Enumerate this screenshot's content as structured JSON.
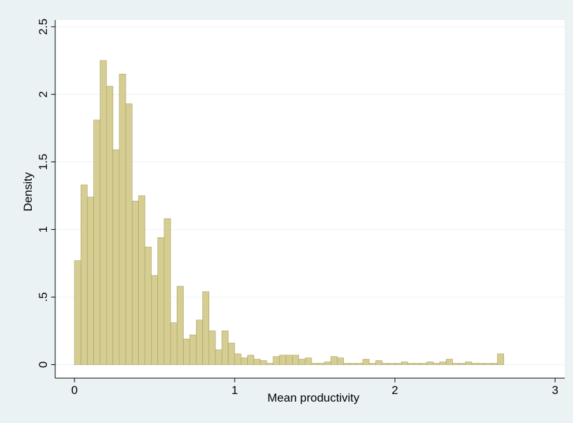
{
  "chart_data": {
    "type": "histogram",
    "xlabel": "Mean productivity",
    "ylabel": "Density",
    "bins": [
      0,
      0.04,
      0.08,
      0.12,
      0.16,
      0.2,
      0.24,
      0.28,
      0.32,
      0.36,
      0.4,
      0.44,
      0.48,
      0.52,
      0.56,
      0.6,
      0.64,
      0.68,
      0.72,
      0.76,
      0.8,
      0.84,
      0.88,
      0.92,
      0.96,
      1,
      1.04,
      1.08,
      1.12,
      1.16,
      1.2,
      1.24,
      1.28,
      1.32,
      1.36,
      1.4,
      1.44,
      1.48,
      1.52,
      1.56,
      1.6,
      1.64,
      1.68,
      1.72,
      1.76,
      1.8,
      1.84,
      1.88,
      1.92,
      1.96,
      2,
      2.04,
      2.08,
      2.12,
      2.16,
      2.2,
      2.24,
      2.28,
      2.32,
      2.36,
      2.4,
      2.44,
      2.48,
      2.52,
      2.56,
      2.6,
      2.64,
      2.68
    ],
    "values": [
      0.77,
      1.33,
      1.24,
      1.81,
      2.25,
      2.06,
      1.59,
      2.15,
      1.93,
      1.21,
      1.25,
      0.87,
      0.66,
      0.94,
      1.08,
      0.31,
      0.58,
      0.19,
      0.22,
      0.33,
      0.54,
      0.25,
      0.11,
      0.25,
      0.16,
      0.08,
      0.05,
      0.07,
      0.04,
      0.03,
      0.01,
      0.06,
      0.07,
      0.07,
      0.07,
      0.04,
      0.05,
      0.01,
      0.01,
      0.02,
      0.06,
      0.05,
      0.01,
      0.01,
      0.01,
      0.04,
      0.01,
      0.03,
      0.01,
      0.01,
      0.01,
      0.02,
      0.01,
      0.01,
      0.01,
      0.02,
      0.01,
      0.02,
      0.04,
      0.01,
      0.01,
      0.02,
      0.01,
      0.01,
      0.01,
      0.01,
      0.08
    ],
    "color": "#d5cd92",
    "xlim": [
      -0.12,
      3.06
    ],
    "xticks": [
      0,
      1,
      2,
      3
    ],
    "ylim": [
      -0.1,
      2.55
    ],
    "yticks": [
      0,
      {
        "value": 0.5,
        "label": ".5"
      },
      1,
      1.5,
      2,
      2.5
    ],
    "grid": true
  }
}
